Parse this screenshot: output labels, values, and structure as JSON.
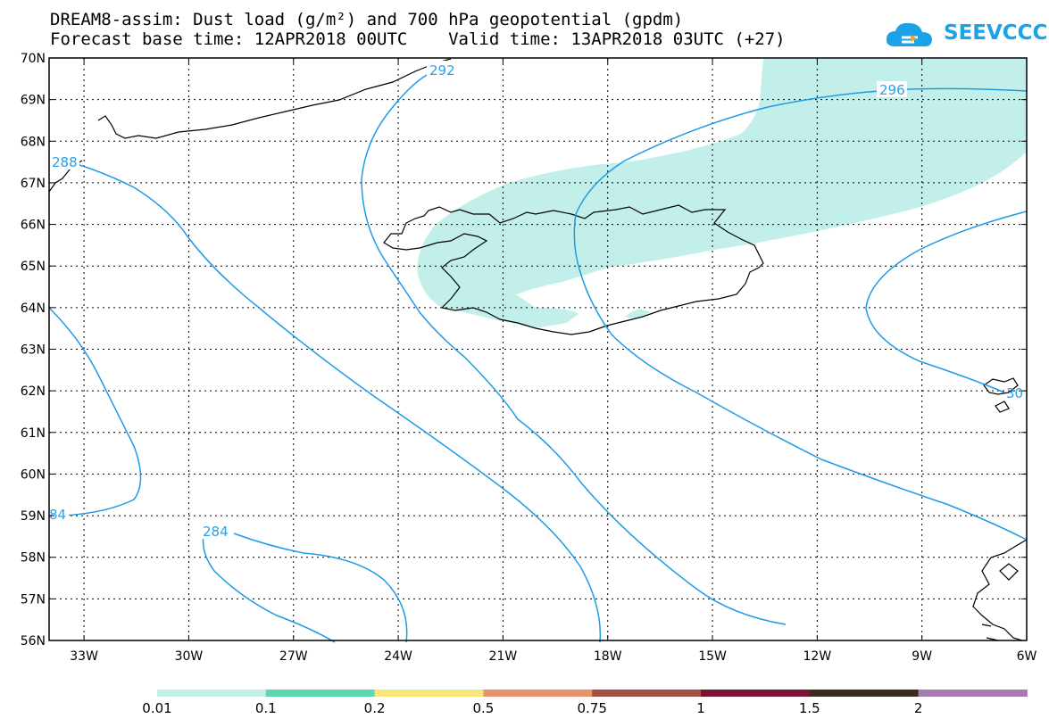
{
  "title": {
    "line1": "DREAM8-assim: Dust load (g/m²) and 700 hPa geopotential (gpdm)",
    "line2": "Forecast base time: 12APR2018 00UTC    Valid time: 13APR2018 03UTC (+27)"
  },
  "logo": {
    "text": "SEEVCCC",
    "icon": "cloud-logo-icon",
    "color": "#1aa3e8"
  },
  "map": {
    "lat_ticks": [
      "70N",
      "69N",
      "68N",
      "67N",
      "66N",
      "65N",
      "64N",
      "63N",
      "62N",
      "61N",
      "60N",
      "59N",
      "58N",
      "57N",
      "56N"
    ],
    "lon_ticks": [
      "33W",
      "30W",
      "27W",
      "24W",
      "21W",
      "18W",
      "15W",
      "12W",
      "9W",
      "6W"
    ],
    "contour_color": "#1e9be6",
    "dust_fill_color": "#c2efe9",
    "contour_labels": [
      "292",
      "296",
      "288",
      "284",
      "84",
      "30"
    ]
  },
  "colorbar": {
    "labels": [
      "0.01",
      "0.1",
      "0.2",
      "0.5",
      "0.75",
      "1",
      "1.5",
      "2"
    ],
    "colors": [
      "#c2efe9",
      "#5fd7b0",
      "#f5e77a",
      "#e8926a",
      "#a64d45",
      "#7a1432",
      "#3d2a1a",
      "#a47ab0"
    ]
  }
}
